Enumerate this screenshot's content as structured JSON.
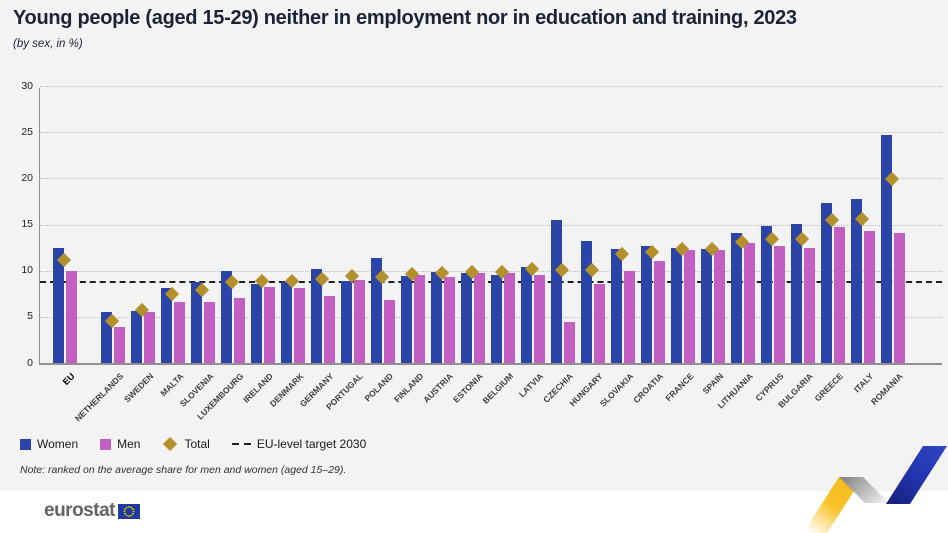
{
  "header": {
    "title": "Young people (aged 15-29) neither in employment nor in education and training, 2023",
    "subtitle": "(by sex, in %)"
  },
  "chart_data": {
    "type": "bar",
    "title": "Young people (aged 15-29) neither in employment nor in education and training, 2023",
    "subtitle": "(by sex, in %)",
    "unit": "%",
    "ylim": [
      0,
      30
    ],
    "yticks": [
      0,
      5,
      10,
      15,
      20,
      25,
      30
    ],
    "grid": "horizontal-dotted",
    "legend_position": "bottom-left",
    "categories": [
      "EU",
      "NETHERLANDS",
      "SWEDEN",
      "MALTA",
      "SLOVENIA",
      "LUXEMBOURG",
      "IRELAND",
      "DENMARK",
      "GERMANY",
      "PORTUGAL",
      "POLAND",
      "FINLAND",
      "AUSTRIA",
      "ESTONIA",
      "BELGIUM",
      "LATVIA",
      "CZECHIA",
      "HUNGARY",
      "SLOVAKIA",
      "CROATIA",
      "FRANCE",
      "SPAIN",
      "LITHUANIA",
      "CYPRUS",
      "BULGARIA",
      "GREECE",
      "ITALY",
      "ROMANIA"
    ],
    "series": [
      {
        "name": "Women",
        "marker": "bar",
        "color": "#2b44a7",
        "values": [
          12.5,
          5.5,
          5.6,
          8.1,
          8.8,
          10.0,
          8.6,
          8.8,
          10.2,
          8.9,
          11.4,
          9.4,
          9.9,
          9.8,
          9.5,
          10.4,
          15.5,
          13.2,
          12.4,
          12.7,
          12.5,
          12.3,
          14.1,
          14.8,
          15.1,
          17.3,
          17.8,
          24.7
        ]
      },
      {
        "name": "Men",
        "marker": "bar",
        "color": "#c35ec2",
        "values": [
          10.0,
          3.9,
          5.5,
          6.6,
          6.6,
          7.0,
          8.2,
          8.1,
          7.3,
          9.0,
          6.8,
          9.5,
          9.3,
          9.7,
          9.8,
          9.5,
          4.4,
          8.6,
          10.0,
          11.0,
          12.2,
          12.2,
          13.0,
          12.7,
          12.5,
          14.7,
          14.3,
          14.1
        ]
      },
      {
        "name": "Total",
        "marker": "diamond",
        "color": "#b3902c",
        "values": [
          11.2,
          4.5,
          5.7,
          7.5,
          7.9,
          8.8,
          8.9,
          8.9,
          9.1,
          9.4,
          9.3,
          9.6,
          9.7,
          9.9,
          9.9,
          10.2,
          10.1,
          10.1,
          11.8,
          12.0,
          12.3,
          12.3,
          13.1,
          13.4,
          13.4,
          15.5,
          15.6,
          19.9
        ]
      }
    ],
    "target_line": {
      "label": "EU-level target 2030",
      "value": 8.8,
      "style": "dashed"
    }
  },
  "legend": {
    "women": "Women",
    "men": "Men",
    "total": "Total",
    "target": "EU-level target 2030"
  },
  "note": "Note: ranked on the average share for men and women (aged 15–29).",
  "footer": {
    "brand": "eurostat"
  },
  "colors": {
    "women": "#2b44a7",
    "men": "#c35ec2",
    "total": "#b3902c",
    "target_line": "#1f1f1f",
    "background": "#f3f3f3",
    "footer_background": "#ffffff",
    "title_text": "#1b2436",
    "eu_flag_blue": "#1c3b9e",
    "flag_stars": "#ffcc00",
    "ribbon_yellow": "#f9c32e",
    "ribbon_blue": "#2434b0"
  }
}
